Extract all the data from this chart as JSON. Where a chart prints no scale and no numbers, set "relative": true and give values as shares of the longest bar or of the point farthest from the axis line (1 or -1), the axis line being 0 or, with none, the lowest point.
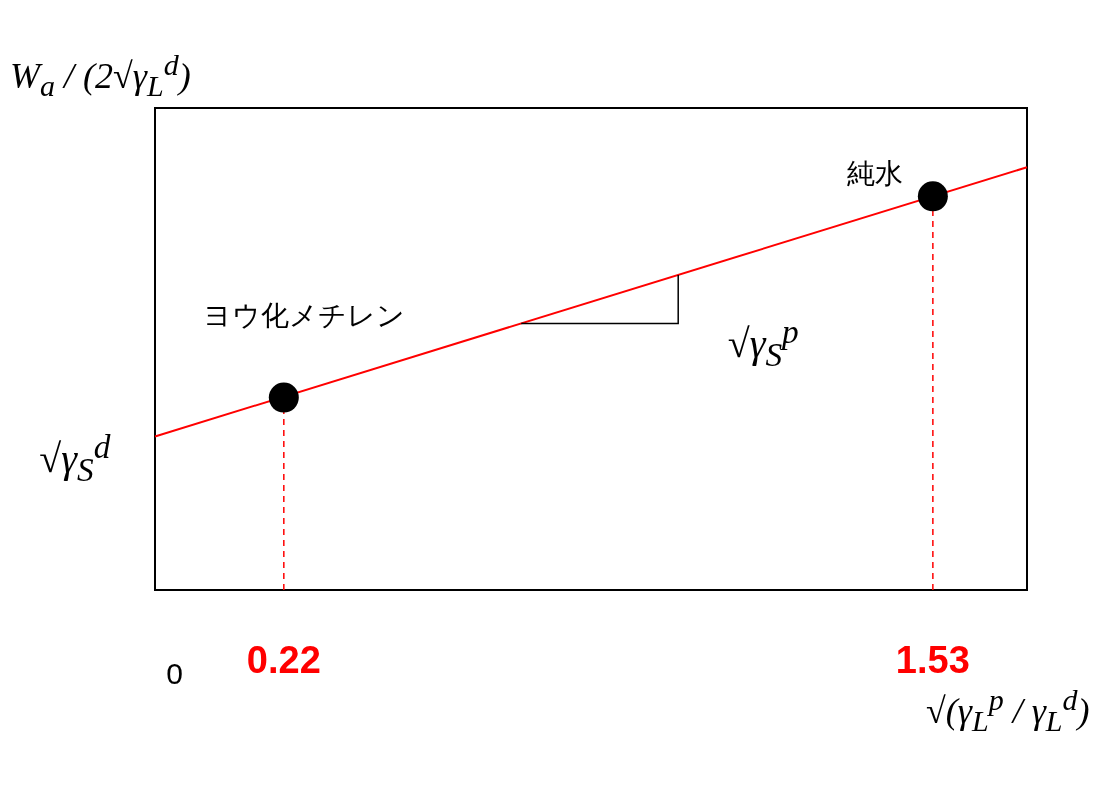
{
  "chart_data": {
    "type": "scatter",
    "relative": true,
    "xlabel": "√(γ$_{L}$$^{p}$ / γ$_{L}$$^{d}$)",
    "ylabel": "W$_{a}$ / (2√γ$_{L}$$^{d}$)",
    "xlim": [
      -0.04,
      1.72
    ],
    "xticks": [
      0,
      0.22,
      1.53
    ],
    "tick_labels": "x",
    "series": [
      {
        "type": "line",
        "color": "#ff0000",
        "x": [
          -0.04,
          1.72
        ],
        "values": [
          0.363,
          1
        ],
        "marker": "none"
      },
      {
        "color": "#000000",
        "x": [
          0.22,
          1.53
        ],
        "values": [
          0.455,
          0.931
        ],
        "marker": "circle"
      }
    ],
    "ref_lines": [
      {
        "axis": "x",
        "value": 0.22,
        "color": "#ff0000",
        "line_style": "dashed"
      },
      {
        "axis": "x",
        "value": 1.53,
        "color": "#ff0000",
        "line_style": "dashed"
      }
    ],
    "annotations": [
      {
        "text": "ヨウ化メチレン",
        "x": 0.22,
        "y": 0.455
      },
      {
        "text": "純水",
        "x": 1.53,
        "y": 0.931
      },
      {
        "text": "√γ$_{S}$$^{d}$",
        "x": 0,
        "y": 0.377
      },
      "√γ$_{S}$$^{p}$"
    ],
    "grid": false
  }
}
